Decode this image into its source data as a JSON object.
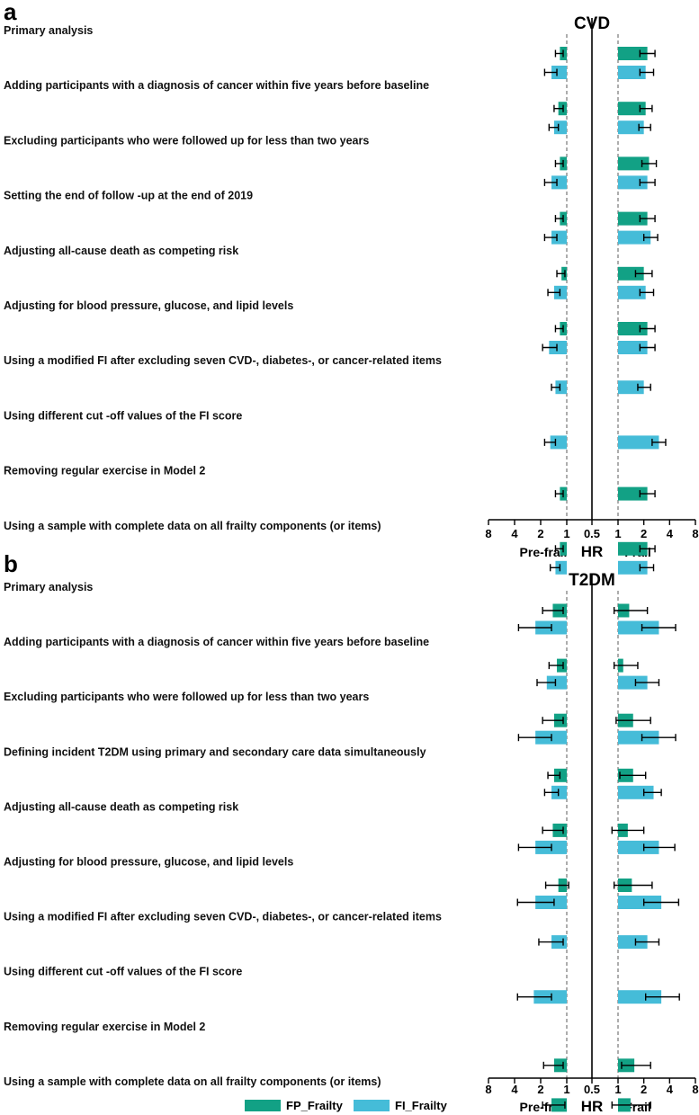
{
  "colors": {
    "fp": "#12a185",
    "fi": "#45bcd8",
    "ref_line": "#8a8a8a",
    "axis": "#000000"
  },
  "legend": {
    "fp_label": "FP_Frailty",
    "fi_label": "FI_Frailty"
  },
  "axis": {
    "ticks_left": [
      "8",
      "4",
      "2",
      "1"
    ],
    "tick_mid": "0.5",
    "ticks_right": [
      "1",
      "2",
      "4",
      "8"
    ],
    "left_label": "Pre-frail",
    "mid_label": "HR",
    "right_label": "Frail"
  },
  "chart_data": [
    {
      "type": "bar",
      "panel": "a",
      "title": "CVD",
      "scale": "log2",
      "rows": [
        {
          "label": "Primary analysis",
          "fp": {
            "prefrail": [
              1.2,
              1.1,
              1.35
            ],
            "frail": [
              2.2,
              1.8,
              2.7
            ]
          },
          "fi": {
            "prefrail": [
              1.5,
              1.3,
              1.8
            ],
            "frail": [
              2.1,
              1.8,
              2.6
            ]
          }
        },
        {
          "label": "Adding participants with a diagnosis of cancer within five years before baseline",
          "fp": {
            "prefrail": [
              1.25,
              1.1,
              1.4
            ],
            "frail": [
              2.1,
              1.8,
              2.5
            ]
          },
          "fi": {
            "prefrail": [
              1.4,
              1.25,
              1.6
            ],
            "frail": [
              2.0,
              1.75,
              2.4
            ]
          }
        },
        {
          "label": "Excluding participants who were followed up for less than two years",
          "fp": {
            "prefrail": [
              1.2,
              1.1,
              1.35
            ],
            "frail": [
              2.3,
              1.9,
              2.8
            ]
          },
          "fi": {
            "prefrail": [
              1.5,
              1.3,
              1.8
            ],
            "frail": [
              2.2,
              1.8,
              2.7
            ]
          }
        },
        {
          "label": "Setting the end of follow -up at the end of 2019",
          "fp": {
            "prefrail": [
              1.2,
              1.1,
              1.35
            ],
            "frail": [
              2.2,
              1.8,
              2.7
            ]
          },
          "fi": {
            "prefrail": [
              1.5,
              1.3,
              1.8
            ],
            "frail": [
              2.4,
              2.0,
              2.9
            ]
          }
        },
        {
          "label": "Adjusting all-cause death as competing risk",
          "fp": {
            "prefrail": [
              1.15,
              1.05,
              1.3
            ],
            "frail": [
              2.0,
              1.6,
              2.5
            ]
          },
          "fi": {
            "prefrail": [
              1.4,
              1.2,
              1.65
            ],
            "frail": [
              2.1,
              1.8,
              2.6
            ]
          }
        },
        {
          "label": "Adjusting for blood pressure, glucose, and lipid levels",
          "fp": {
            "prefrail": [
              1.2,
              1.1,
              1.35
            ],
            "frail": [
              2.2,
              1.8,
              2.7
            ]
          },
          "fi": {
            "prefrail": [
              1.6,
              1.3,
              1.9
            ],
            "frail": [
              2.2,
              1.8,
              2.7
            ]
          }
        },
        {
          "label": "Using a modified FI after excluding  seven CVD-, diabetes-, or cancer-related items",
          "fp": null,
          "fi": {
            "prefrail": [
              1.35,
              1.2,
              1.5
            ],
            "frail": [
              2.0,
              1.7,
              2.4
            ]
          }
        },
        {
          "label": "Using different cut -off values of the FI score",
          "fp": null,
          "fi": {
            "prefrail": [
              1.55,
              1.35,
              1.8
            ],
            "frail": [
              3.0,
              2.5,
              3.6
            ]
          }
        },
        {
          "label": "Removing regular exercise in Model 2",
          "fp": {
            "prefrail": [
              1.2,
              1.1,
              1.35
            ],
            "frail": [
              2.2,
              1.8,
              2.7
            ]
          },
          "fi": null
        },
        {
          "label": "Using a sample  with complete data on all frailty components (or items)",
          "fp": {
            "prefrail": [
              1.2,
              1.1,
              1.35
            ],
            "frail": [
              2.2,
              1.8,
              2.7
            ]
          },
          "fi": {
            "prefrail": [
              1.35,
              1.2,
              1.55
            ],
            "frail": [
              2.2,
              1.8,
              2.6
            ]
          }
        }
      ]
    },
    {
      "type": "bar",
      "panel": "b",
      "title": "T2DM",
      "scale": "log2",
      "rows": [
        {
          "label": "Primary analysis",
          "fp": {
            "prefrail": [
              1.45,
              1.1,
              1.9
            ],
            "frail": [
              1.35,
              0.9,
              2.2
            ]
          },
          "fi": {
            "prefrail": [
              2.3,
              1.5,
              3.6
            ],
            "frail": [
              3.0,
              1.9,
              4.7
            ]
          }
        },
        {
          "label": "Adding participants with a diagnosis of cancer within five years before baseline",
          "fp": {
            "prefrail": [
              1.3,
              1.1,
              1.6
            ],
            "frail": [
              1.15,
              0.9,
              1.7
            ]
          },
          "fi": {
            "prefrail": [
              1.7,
              1.35,
              2.2
            ],
            "frail": [
              2.2,
              1.6,
              3.0
            ]
          }
        },
        {
          "label": "Excluding participants who were followed up for less than two years",
          "fp": {
            "prefrail": [
              1.4,
              1.1,
              1.9
            ],
            "frail": [
              1.5,
              0.95,
              2.4
            ]
          },
          "fi": {
            "prefrail": [
              2.3,
              1.5,
              3.6
            ],
            "frail": [
              3.0,
              1.9,
              4.7
            ]
          }
        },
        {
          "label": "Defining incident T2DM using primary and secondary care data simultaneously",
          "fp": {
            "prefrail": [
              1.4,
              1.2,
              1.65
            ],
            "frail": [
              1.5,
              1.05,
              2.1
            ]
          },
          "fi": {
            "prefrail": [
              1.5,
              1.25,
              1.8
            ],
            "frail": [
              2.6,
              2.0,
              3.2
            ]
          }
        },
        {
          "label": "Adjusting all-cause death as competing risk",
          "fp": {
            "prefrail": [
              1.45,
              1.1,
              1.9
            ],
            "frail": [
              1.3,
              0.85,
              2.0
            ]
          },
          "fi": {
            "prefrail": [
              2.3,
              1.5,
              3.6
            ],
            "frail": [
              3.0,
              2.0,
              4.6
            ]
          }
        },
        {
          "label": "Adjusting for blood pressure, glucose, and lipid levels",
          "fp": {
            "prefrail": [
              1.25,
              0.95,
              1.75
            ],
            "frail": [
              1.45,
              0.9,
              2.5
            ]
          },
          "fi": {
            "prefrail": [
              2.3,
              1.4,
              3.7
            ],
            "frail": [
              3.2,
              2.0,
              5.1
            ]
          }
        },
        {
          "label": "Using a modified FI after excluding seven  CVD-, diabetes-, or cancer-related items",
          "fp": null,
          "fi": {
            "prefrail": [
              1.5,
              1.1,
              2.1
            ],
            "frail": [
              2.2,
              1.6,
              3.0
            ]
          }
        },
        {
          "label": "Using different cut -off values of the FI score",
          "fp": null,
          "fi": {
            "prefrail": [
              2.4,
              1.5,
              3.7
            ],
            "frail": [
              3.2,
              2.1,
              5.2
            ]
          }
        },
        {
          "label": "Removing regular exercise in Model 2",
          "fp": {
            "prefrail": [
              1.4,
              1.1,
              1.85
            ],
            "frail": [
              1.55,
              1.1,
              2.4
            ]
          },
          "fi": null
        },
        {
          "label": "Using a sample  with complete data on all frailty components (or items)",
          "fp": {
            "prefrail": [
              1.5,
              1.05,
              1.9
            ],
            "frail": [
              1.4,
              0.85,
              2.4
            ]
          },
          "fi": {
            "prefrail": [
              2.0,
              1.3,
              3.3
            ],
            "frail": [
              2.6,
              1.7,
              4.3
            ]
          }
        }
      ]
    }
  ]
}
